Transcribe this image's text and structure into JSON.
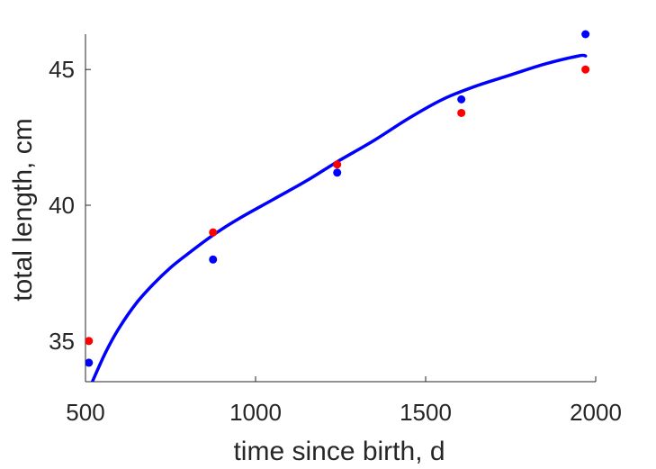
{
  "chart_data": {
    "type": "scatter",
    "xlabel": "time since birth, d",
    "ylabel": "total length, cm",
    "xlim": [
      500,
      2000
    ],
    "ylim": [
      33.5,
      46.3
    ],
    "xticks": [
      500,
      1000,
      1500,
      2000
    ],
    "yticks": [
      35,
      40,
      45
    ],
    "grid": false,
    "colors": {
      "red_points": "#ff0000",
      "blue_points": "#0000ff",
      "fit_curve": "#0000ff",
      "axis": "#262626"
    },
    "series": [
      {
        "kind": "points",
        "color": "#ff0000",
        "x": [
          510,
          875,
          1240,
          1605,
          1970
        ],
        "y": [
          35.0,
          39.0,
          41.5,
          43.4,
          45.0
        ]
      },
      {
        "kind": "points",
        "color": "#0000ff",
        "x": [
          510,
          875,
          1240,
          1605,
          1970
        ],
        "y": [
          34.2,
          38.0,
          41.2,
          43.9,
          46.3
        ]
      },
      {
        "kind": "line",
        "color": "#0000ff",
        "x": [
          520,
          560,
          600,
          650,
          700,
          750,
          800,
          875,
          950,
          1050,
          1150,
          1240,
          1350,
          1450,
          1550,
          1650,
          1750,
          1850,
          1950,
          1970
        ],
        "y": [
          33.5,
          34.6,
          35.5,
          36.4,
          37.1,
          37.7,
          38.2,
          38.9,
          39.5,
          40.2,
          40.9,
          41.6,
          42.4,
          43.2,
          43.9,
          44.4,
          44.8,
          45.2,
          45.5,
          45.5
        ]
      }
    ]
  }
}
